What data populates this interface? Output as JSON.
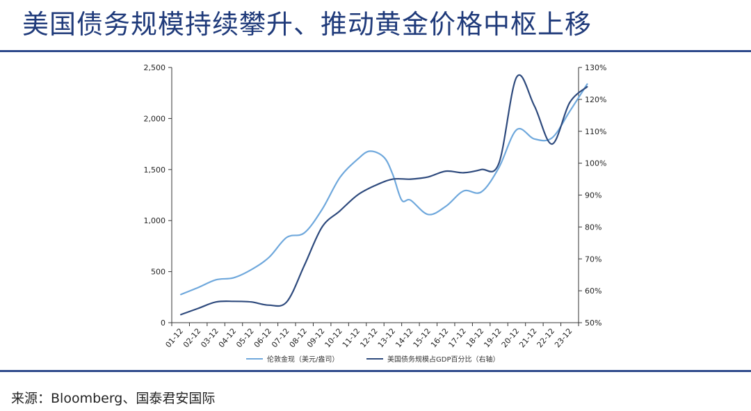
{
  "title": "美国债务规模持续攀升、推动黄金价格中枢上移",
  "source": "来源：Bloomberg、国泰君安国际",
  "colors": {
    "gold_price": "#6FA8DC",
    "debt_gdp": "#2E4A7D",
    "rule": "#2E4A8B",
    "title": "#1F3A7A"
  },
  "chart_data": {
    "type": "line",
    "categories": [
      "01-12",
      "02-12",
      "03-12",
      "04-12",
      "05-12",
      "06-12",
      "07-12",
      "08-12",
      "09-12",
      "10-12",
      "11-12",
      "12-12",
      "13-12",
      "14-12",
      "15-12",
      "16-12",
      "17-12",
      "18-12",
      "19-12",
      "20-12",
      "21-12",
      "22-12",
      "23-12"
    ],
    "y_left": {
      "lim": [
        0,
        2500
      ],
      "ticks": [
        0,
        500,
        1000,
        1500,
        2000,
        2500
      ],
      "tick_labels": [
        "0",
        "500",
        "1,000",
        "1,500",
        "2,000",
        "2,500"
      ]
    },
    "y_right": {
      "lim": [
        50,
        130
      ],
      "ticks": [
        50,
        60,
        70,
        80,
        90,
        100,
        110,
        120,
        130
      ],
      "tick_labels": [
        "50%",
        "60%",
        "70%",
        "80%",
        "90%",
        "100%",
        "110%",
        "120%",
        "130%"
      ]
    },
    "series": [
      {
        "name": "伦敦金现（美元/盎司）",
        "axis": "left",
        "x": [
          0,
          1,
          2,
          3,
          4,
          5,
          6,
          7,
          8,
          9,
          10,
          10.7,
          11.5,
          12,
          12.5,
          13,
          14,
          15,
          16,
          17,
          18,
          19,
          20,
          21,
          22,
          23
        ],
        "values": [
          275,
          345,
          420,
          440,
          520,
          640,
          835,
          880,
          1110,
          1420,
          1600,
          1680,
          1620,
          1450,
          1200,
          1200,
          1060,
          1140,
          1290,
          1280,
          1520,
          1890,
          1800,
          1810,
          2070,
          2340
        ]
      },
      {
        "name": "美国债务规模占GDP百分比（右轴）",
        "axis": "right",
        "x": [
          0,
          1,
          2,
          3,
          4,
          5,
          6,
          7,
          8,
          9,
          10,
          11,
          12,
          13,
          14,
          15,
          16,
          17,
          18,
          19,
          20,
          21,
          22,
          23
        ],
        "values": [
          52.5,
          54.5,
          56.5,
          56.7,
          56.5,
          55.5,
          56.5,
          68,
          80,
          85,
          90,
          93,
          95,
          95,
          95.7,
          97.5,
          97,
          98,
          100,
          127,
          118,
          106,
          119,
          124
        ]
      }
    ],
    "legend_position": "bottom",
    "grid": false
  }
}
